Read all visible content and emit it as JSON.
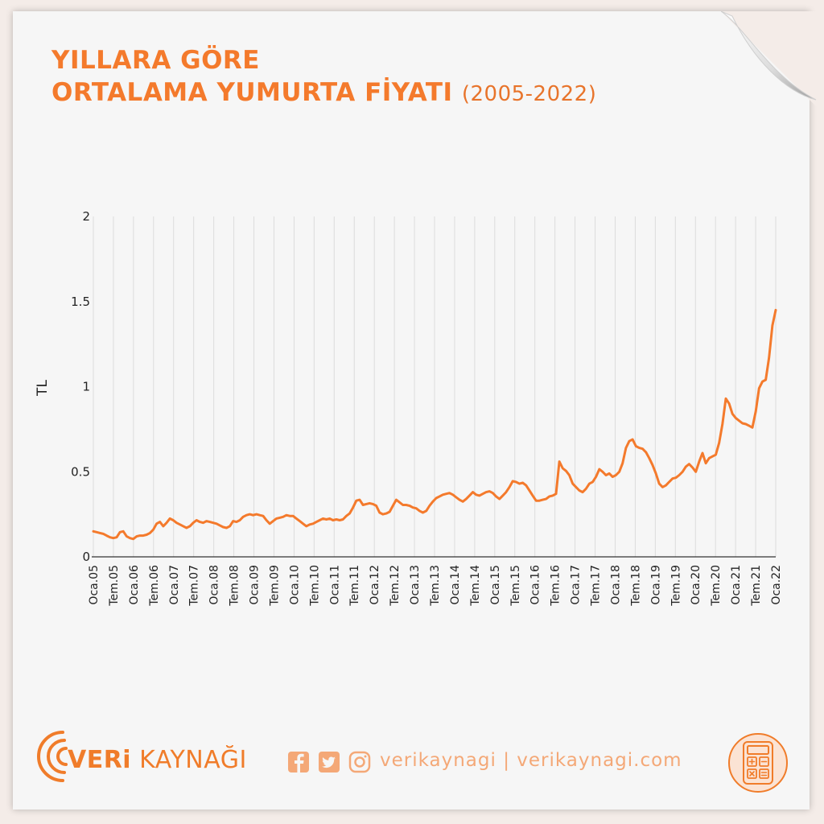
{
  "title": {
    "line1": "YILLARA GÖRE",
    "line2": "ORTALAMA YUMURTA FİYATI",
    "years": "(2005-2022)"
  },
  "footer": {
    "brand_bold": "VERi",
    "brand_rest": " KAYNAĞI",
    "handle": "verikaynagi | verikaynagi.com"
  },
  "icons": [
    "facebook-icon",
    "twitter-icon",
    "instagram-icon",
    "calculator-icon",
    "signal-arcs-logo-icon"
  ],
  "colors": {
    "accent": "#f47a2c",
    "line": "#f47a2c",
    "grid": "#dcdcdc",
    "background": "#f6f6f6"
  },
  "chart_data": {
    "type": "line",
    "title": "YILLARA GÖRE ORTALAMA YUMURTA FİYATI (2005-2022)",
    "xlabel": "",
    "ylabel": "TL",
    "ylim": [
      0,
      2
    ],
    "yticks": [
      0,
      0.5,
      1,
      1.5,
      2
    ],
    "yticklabels": [
      "0",
      "0.5",
      "1",
      "1.5",
      "2"
    ],
    "xticklabels": [
      "Oca.05",
      "Tem.05",
      "Oca.06",
      "Tem.06",
      "Oca.07",
      "Tem.07",
      "Oca.08",
      "Tem.08",
      "Oca.09",
      "Tem.09",
      "Oca.10",
      "Tem.10",
      "Oca.11",
      "Tem.11",
      "Oca.12",
      "Tem.12",
      "Oca.13",
      "Tem.13",
      "Oca.14",
      "Tem.14",
      "Oca.15",
      "Tem.15",
      "Oca.16",
      "Tem.16",
      "Oca.17",
      "Tem.17",
      "Oca.18",
      "Tem.18",
      "Oca.19",
      "Tem.19",
      "Oca.20",
      "Tem.20",
      "Oca.21",
      "Tem.21",
      "Oca.22"
    ],
    "grid": "vertical",
    "series": [
      {
        "values": [
          0.15,
          0.145,
          0.14,
          0.135,
          0.125,
          0.115,
          0.11,
          0.115,
          0.145,
          0.15,
          0.12,
          0.11,
          0.105,
          0.12,
          0.125,
          0.125,
          0.13,
          0.14,
          0.16,
          0.195,
          0.205,
          0.18,
          0.2,
          0.225,
          0.215,
          0.2,
          0.19,
          0.18,
          0.17,
          0.18,
          0.2,
          0.215,
          0.205,
          0.2,
          0.21,
          0.205,
          0.2,
          0.195,
          0.185,
          0.175,
          0.17,
          0.18,
          0.21,
          0.205,
          0.215,
          0.235,
          0.245,
          0.25,
          0.245,
          0.25,
          0.245,
          0.24,
          0.215,
          0.195,
          0.21,
          0.225,
          0.23,
          0.235,
          0.245,
          0.24,
          0.24,
          0.225,
          0.21,
          0.195,
          0.18,
          0.19,
          0.195,
          0.205,
          0.215,
          0.225,
          0.22,
          0.225,
          0.215,
          0.22,
          0.215,
          0.22,
          0.24,
          0.255,
          0.29,
          0.33,
          0.335,
          0.305,
          0.31,
          0.315,
          0.31,
          0.3,
          0.26,
          0.25,
          0.255,
          0.265,
          0.3,
          0.335,
          0.32,
          0.305,
          0.305,
          0.3,
          0.29,
          0.285,
          0.27,
          0.26,
          0.27,
          0.3,
          0.325,
          0.345,
          0.355,
          0.365,
          0.37,
          0.375,
          0.365,
          0.35,
          0.335,
          0.325,
          0.34,
          0.36,
          0.38,
          0.365,
          0.36,
          0.37,
          0.38,
          0.385,
          0.375,
          0.355,
          0.34,
          0.36,
          0.38,
          0.41,
          0.445,
          0.44,
          0.43,
          0.435,
          0.42,
          0.39,
          0.36,
          0.33,
          0.33,
          0.335,
          0.34,
          0.355,
          0.36,
          0.37,
          0.56,
          0.52,
          0.505,
          0.48,
          0.43,
          0.41,
          0.39,
          0.38,
          0.4,
          0.43,
          0.44,
          0.47,
          0.515,
          0.5,
          0.48,
          0.49,
          0.47,
          0.48,
          0.5,
          0.55,
          0.64,
          0.68,
          0.69,
          0.65,
          0.64,
          0.635,
          0.615,
          0.58,
          0.54,
          0.49,
          0.43,
          0.41,
          0.42,
          0.44,
          0.46,
          0.465,
          0.48,
          0.5,
          0.53,
          0.545,
          0.525,
          0.5,
          0.56,
          0.61,
          0.55,
          0.58,
          0.59,
          0.6,
          0.67,
          0.78,
          0.93,
          0.9,
          0.84,
          0.815,
          0.8,
          0.785,
          0.78,
          0.77,
          0.76,
          0.855,
          0.99,
          1.03,
          1.04,
          1.17,
          1.36,
          1.45
        ]
      }
    ]
  }
}
